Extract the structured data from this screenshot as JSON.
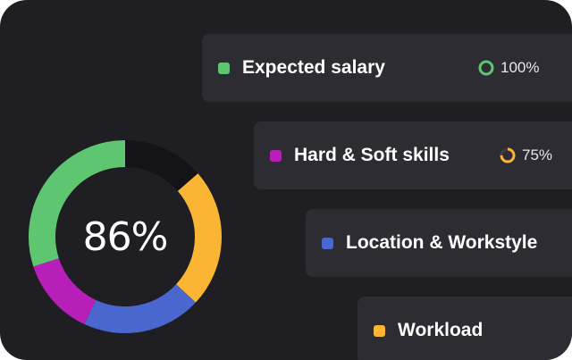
{
  "score": {
    "value": "86%",
    "fraction": 0.86
  },
  "chart_data": {
    "type": "pie",
    "segments": [
      {
        "name": "Expected salary",
        "color": "#5ec670",
        "order": 1
      },
      {
        "name": "Hard & Soft skills",
        "color": "#b71fb8",
        "order": 2
      },
      {
        "name": "Location & Workstyle",
        "color": "#4a67d0",
        "order": 3
      },
      {
        "name": "Workload",
        "color": "#fbb534",
        "order": 4
      },
      {
        "name": "unfilled",
        "color": "#141417"
      }
    ]
  },
  "criteria": [
    {
      "label": "Expected salary",
      "color": "#5ec670",
      "percent": "100%",
      "ring_fraction": 1.0,
      "ring_color": "#5ec670",
      "icon": "progress-ring-icon"
    },
    {
      "label": "Hard & Soft skills",
      "color": "#b71fb8",
      "percent": "75%",
      "ring_fraction": 0.75,
      "ring_color": "#fbb534",
      "icon": "progress-ring-icon"
    },
    {
      "label": "Location & Workstyle",
      "color": "#4a67d0"
    },
    {
      "label": "Workload",
      "color": "#fbb534"
    }
  ],
  "colors": {
    "card_bg": "#1f1e23",
    "row_bg": "#2d2c32"
  }
}
